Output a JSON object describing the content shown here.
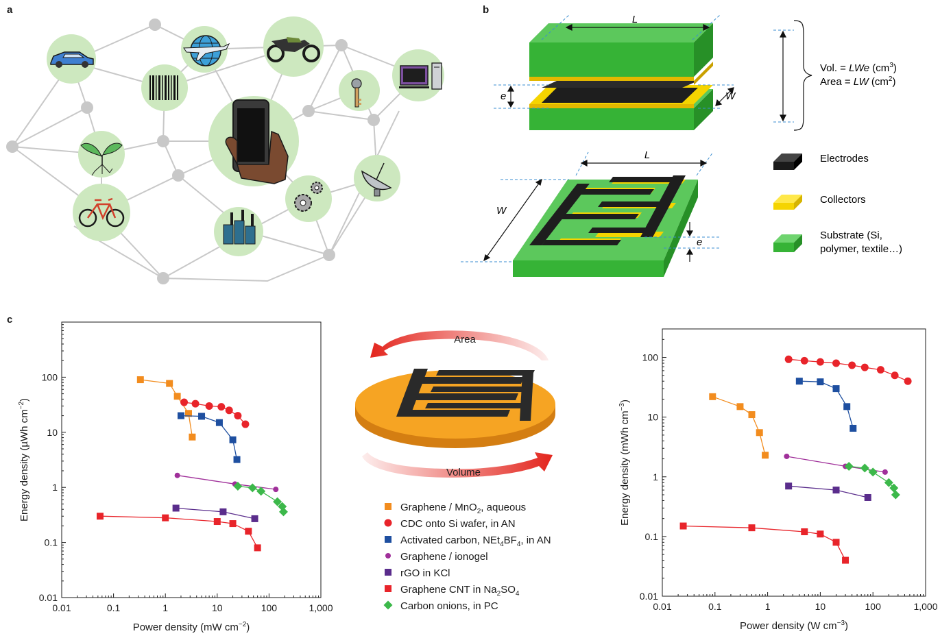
{
  "panels": {
    "a": "a",
    "b": "b",
    "c": "c"
  },
  "icons": [
    "car-icon",
    "globe-plane-icon",
    "motorcycle-icon",
    "key-icon",
    "desktop-computer-icon",
    "barcode-icon",
    "smartphone-hand-icon",
    "seedling-icon",
    "bicycle-icon",
    "factory-icon",
    "gears-icon",
    "satellite-dish-icon"
  ],
  "diagram_b": {
    "top_L": "L",
    "top_W": "W",
    "top_e": "e",
    "bottom_L": "L",
    "bottom_W": "W",
    "bottom_e": "e",
    "vol_prefix": "Vol. = ",
    "vol_italic": "LWe",
    "vol_unit": " (cm",
    "vol_exp": "3",
    "vol_close": ")",
    "area_prefix": "Area = ",
    "area_italic": "LW",
    "area_unit": " (cm",
    "area_exp": "2",
    "area_close": ")",
    "legend": {
      "electrodes": "Electrodes",
      "collectors": "Collectors",
      "substrate_1": "Substrate (Si,",
      "substrate_2": "polymer, textile…)"
    },
    "colors": {
      "electrode": "#222222",
      "collector": "#f5d400",
      "substrate": "#3cb83c"
    }
  },
  "center": {
    "area": "Area",
    "volume": "Volume"
  },
  "legend_c": [
    {
      "parts": [
        "Graphene / MnO",
        "2",
        ", aqueous"
      ],
      "color": "#f28c1e",
      "marker": "square"
    },
    {
      "parts": [
        "CDC onto Si wafer, in AN"
      ],
      "color": "#e8242a",
      "marker": "circle"
    },
    {
      "parts": [
        "Activated carbon, NEt",
        "4",
        "BF",
        "4",
        ", in AN"
      ],
      "color": "#1e4fa0",
      "marker": "square"
    },
    {
      "parts": [
        "Graphene / ionogel"
      ],
      "color": "#a0309a",
      "marker": "circle-small"
    },
    {
      "parts": [
        "rGO in KCl"
      ],
      "color": "#5a2d8c",
      "marker": "square"
    },
    {
      "parts": [
        "Graphene CNT in Na",
        "2",
        "SO",
        "4"
      ],
      "color": "#e8242a",
      "marker": "square"
    },
    {
      "parts": [
        "Carbon onions, in PC"
      ],
      "color": "#3cb84a",
      "marker": "diamond"
    }
  ],
  "chart_data": [
    {
      "type": "scatter",
      "xlabel": "Power density (mW cm",
      "xlabel_exp": "−2",
      "xlabel_close": ")",
      "ylabel": "Energy density (µWh cm",
      "ylabel_exp": "−2",
      "ylabel_close": ")",
      "xscale": "log",
      "yscale": "log",
      "xlim": [
        0.01,
        1000
      ],
      "ylim": [
        0.01,
        1000
      ],
      "xticks": [
        {
          "v": 0.01,
          "label": "0.01"
        },
        {
          "v": 0.1,
          "label": "0.1"
        },
        {
          "v": 1,
          "label": "1"
        },
        {
          "v": 10,
          "label": "10"
        },
        {
          "v": 100,
          "label": "100"
        },
        {
          "v": 1000,
          "label": "1,000"
        }
      ],
      "yticks": [
        {
          "v": 0.01,
          "label": "0.01"
        },
        {
          "v": 0.1,
          "label": "0.1"
        },
        {
          "v": 1,
          "label": "1"
        },
        {
          "v": 10,
          "label": "10"
        },
        {
          "v": 100,
          "label": "100"
        }
      ],
      "series": [
        {
          "name": "Graphene / MnO2, aqueous",
          "marker": "square",
          "color": "#f28c1e",
          "points": [
            [
              0.33,
              90
            ],
            [
              1.2,
              77
            ],
            [
              1.7,
              45
            ],
            [
              2.8,
              22
            ],
            [
              3.3,
              8.2
            ]
          ]
        },
        {
          "name": "CDC onto Si wafer, in AN",
          "marker": "circle",
          "color": "#e8242a",
          "points": [
            [
              2.3,
              35
            ],
            [
              3.8,
              33
            ],
            [
              7,
              30
            ],
            [
              12,
              29
            ],
            [
              17,
              25
            ],
            [
              25,
              20
            ],
            [
              35,
              14
            ]
          ]
        },
        {
          "name": "Activated carbon, NEt4BF4, in AN",
          "marker": "square",
          "color": "#1e4fa0",
          "points": [
            [
              2,
              20
            ],
            [
              5,
              19.5
            ],
            [
              11,
              15
            ],
            [
              20,
              7.3
            ],
            [
              24,
              3.2
            ]
          ]
        },
        {
          "name": "Graphene / ionogel",
          "marker": "circle-small",
          "color": "#a0309a",
          "points": [
            [
              1.7,
              1.65
            ],
            [
              22,
              1.15
            ],
            [
              135,
              0.92
            ]
          ]
        },
        {
          "name": "rGO in KCl",
          "marker": "square",
          "color": "#5a2d8c",
          "points": [
            [
              1.6,
              0.42
            ],
            [
              13,
              0.36
            ],
            [
              53,
              0.27
            ]
          ]
        },
        {
          "name": "Graphene CNT in Na2SO4",
          "marker": "square",
          "color": "#e8242a",
          "points": [
            [
              0.055,
              0.3
            ],
            [
              1,
              0.28
            ],
            [
              10,
              0.24
            ],
            [
              20,
              0.22
            ],
            [
              40,
              0.16
            ],
            [
              60,
              0.08
            ]
          ]
        },
        {
          "name": "Carbon onions, in PC",
          "marker": "diamond",
          "color": "#3cb84a",
          "points": [
            [
              25,
              1.05
            ],
            [
              48,
              0.98
            ],
            [
              70,
              0.85
            ],
            [
              145,
              0.55
            ],
            [
              180,
              0.45
            ],
            [
              190,
              0.36
            ]
          ]
        }
      ]
    },
    {
      "type": "scatter",
      "xlabel": "Power density (W cm",
      "xlabel_exp": "−3",
      "xlabel_close": ")",
      "ylabel": "Energy density (mWh cm",
      "ylabel_exp": "−3",
      "ylabel_close": ")",
      "xscale": "log",
      "yscale": "log",
      "xlim": [
        0.01,
        1000
      ],
      "ylim": [
        0.01,
        300
      ],
      "xticks": [
        {
          "v": 0.01,
          "label": "0.01"
        },
        {
          "v": 0.1,
          "label": "0.1"
        },
        {
          "v": 1,
          "label": "1"
        },
        {
          "v": 10,
          "label": "10"
        },
        {
          "v": 100,
          "label": "100"
        },
        {
          "v": 1000,
          "label": "1,000"
        }
      ],
      "yticks": [
        {
          "v": 0.01,
          "label": "0.01"
        },
        {
          "v": 0.1,
          "label": "0.1"
        },
        {
          "v": 1,
          "label": "1"
        },
        {
          "v": 10,
          "label": "10"
        },
        {
          "v": 100,
          "label": "100"
        }
      ],
      "series": [
        {
          "name": "Graphene / MnO2, aqueous",
          "marker": "square",
          "color": "#f28c1e",
          "points": [
            [
              0.09,
              22
            ],
            [
              0.3,
              15
            ],
            [
              0.5,
              11
            ],
            [
              0.7,
              5.5
            ],
            [
              0.9,
              2.3
            ]
          ]
        },
        {
          "name": "CDC onto Si wafer, in AN",
          "marker": "circle",
          "color": "#e8242a",
          "points": [
            [
              2.5,
              93
            ],
            [
              5,
              88
            ],
            [
              10,
              84
            ],
            [
              20,
              80
            ],
            [
              40,
              74
            ],
            [
              70,
              68
            ],
            [
              140,
              62
            ],
            [
              260,
              50
            ],
            [
              460,
              40
            ]
          ]
        },
        {
          "name": "Activated carbon, NEt4BF4, in AN",
          "marker": "square",
          "color": "#1e4fa0",
          "points": [
            [
              4,
              40
            ],
            [
              10,
              39
            ],
            [
              20,
              30
            ],
            [
              32,
              15
            ],
            [
              42,
              6.5
            ]
          ]
        },
        {
          "name": "Graphene / ionogel",
          "marker": "circle-small",
          "color": "#a0309a",
          "points": [
            [
              2.3,
              2.2
            ],
            [
              30,
              1.5
            ],
            [
              170,
              1.2
            ]
          ]
        },
        {
          "name": "rGO in KCl",
          "marker": "square",
          "color": "#5a2d8c",
          "points": [
            [
              2.5,
              0.7
            ],
            [
              20,
              0.6
            ],
            [
              80,
              0.45
            ]
          ]
        },
        {
          "name": "Graphene CNT in Na2SO4",
          "marker": "square",
          "color": "#e8242a",
          "points": [
            [
              0.025,
              0.15
            ],
            [
              0.5,
              0.14
            ],
            [
              5,
              0.12
            ],
            [
              10,
              0.11
            ],
            [
              20,
              0.08
            ],
            [
              30,
              0.04
            ]
          ]
        },
        {
          "name": "Carbon onions, in PC",
          "marker": "diamond",
          "color": "#3cb84a",
          "points": [
            [
              35,
              1.5
            ],
            [
              70,
              1.4
            ],
            [
              100,
              1.2
            ],
            [
              200,
              0.8
            ],
            [
              250,
              0.65
            ],
            [
              270,
              0.5
            ]
          ]
        }
      ]
    }
  ]
}
